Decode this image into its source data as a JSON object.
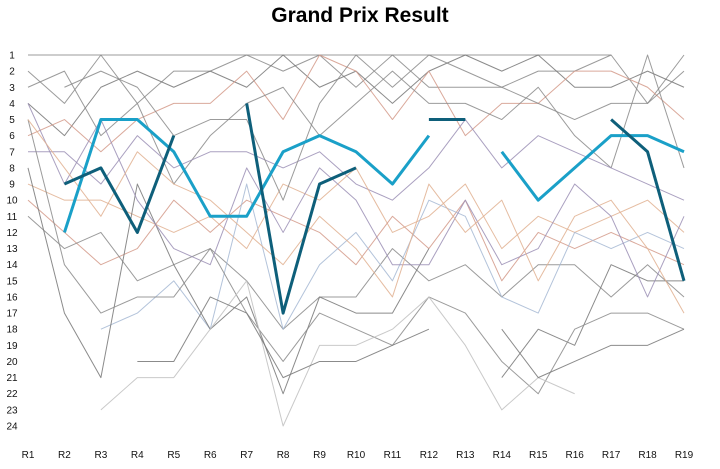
{
  "chart_data": {
    "type": "line",
    "title": "Grand Prix Result",
    "xlabel": "",
    "ylabel": "",
    "categories": [
      "R1",
      "R2",
      "R3",
      "R4",
      "R5",
      "R6",
      "R7",
      "R8",
      "R9",
      "R10",
      "R11",
      "R12",
      "R13",
      "R14",
      "R15",
      "R16",
      "R17",
      "R18",
      "R19"
    ],
    "y_ticks": [
      1,
      2,
      3,
      4,
      5,
      6,
      7,
      8,
      9,
      10,
      11,
      12,
      13,
      14,
      15,
      16,
      17,
      18,
      19,
      20,
      21,
      22,
      23,
      24
    ],
    "ylim": [
      1,
      24
    ],
    "y_inverted": true,
    "grid": false,
    "legend": "none",
    "highlight_series": [
      {
        "color": "#1aa0c8",
        "values": [
          null,
          12,
          5,
          5,
          7,
          11,
          11,
          7,
          6,
          7,
          9,
          6,
          null,
          7,
          10,
          8,
          6,
          6,
          7
        ]
      },
      {
        "color": "#0e5f7a",
        "values": [
          null,
          9,
          8,
          12,
          6,
          null,
          4,
          17,
          9,
          8,
          null,
          5,
          5,
          null,
          null,
          null,
          5,
          7,
          15
        ]
      }
    ],
    "background_series": [
      {
        "color": "#8a8a8a",
        "values": [
          1,
          1,
          1,
          1,
          1,
          1,
          1,
          1,
          1,
          1,
          1,
          1,
          1,
          1,
          1,
          1,
          1,
          null,
          null
        ]
      },
      {
        "color": "#8a8a8a",
        "values": [
          2,
          4,
          1,
          4,
          2,
          2,
          1,
          2,
          1,
          3,
          1,
          3,
          3,
          3,
          2,
          2,
          1,
          4,
          1
        ]
      },
      {
        "color": "#777777",
        "values": [
          4,
          6,
          3,
          2,
          3,
          2,
          3,
          1,
          3,
          2,
          4,
          2,
          1,
          2,
          1,
          3,
          3,
          2,
          3
        ]
      },
      {
        "color": "#d49a8a",
        "values": [
          6,
          5,
          7,
          5,
          4,
          4,
          2,
          5,
          1,
          2,
          5,
          2,
          6,
          4,
          4,
          2,
          2,
          3,
          5
        ]
      },
      {
        "color": "#8a8a8a",
        "values": [
          3,
          2,
          6,
          4,
          9,
          6,
          4,
          3,
          6,
          4,
          2,
          4,
          4,
          5,
          3,
          6,
          8,
          1,
          8
        ]
      },
      {
        "color": "#9b8fb5",
        "values": [
          7,
          7,
          9,
          6,
          8,
          7,
          7,
          8,
          7,
          9,
          10,
          8,
          5,
          8,
          6,
          7,
          8,
          9,
          10
        ]
      },
      {
        "color": "#e0b090",
        "values": [
          9,
          10,
          10,
          11,
          12,
          11,
          13,
          9,
          10,
          8,
          12,
          11,
          9,
          13,
          11,
          12,
          11,
          10,
          12
        ]
      },
      {
        "color": "#d49a8a",
        "values": [
          10,
          12,
          14,
          13,
          10,
          12,
          10,
          11,
          12,
          14,
          11,
          13,
          10,
          15,
          12,
          13,
          12,
          13,
          14
        ]
      },
      {
        "color": "#8a8a8a",
        "values": [
          11,
          13,
          12,
          15,
          14,
          13,
          15,
          18,
          16,
          16,
          13,
          15,
          14,
          16,
          14,
          14,
          16,
          14,
          16
        ]
      },
      {
        "color": "#a6b8d4",
        "values": [
          null,
          null,
          18,
          17,
          15,
          18,
          9,
          18,
          14,
          12,
          15,
          10,
          11,
          16,
          17,
          12,
          13,
          12,
          13
        ]
      },
      {
        "color": "#777777",
        "values": [
          8,
          17,
          21,
          9,
          14,
          18,
          16,
          22,
          16,
          17,
          17,
          13,
          null,
          21,
          18,
          19,
          14,
          15,
          15
        ]
      },
      {
        "color": "#8a8a8a",
        "values": [
          5,
          14,
          17,
          16,
          16,
          13,
          17,
          20,
          17,
          18,
          19,
          16,
          17,
          20,
          22,
          18,
          17,
          17,
          18
        ]
      },
      {
        "color": "#c0c0c0",
        "values": [
          null,
          null,
          23,
          21,
          21,
          18,
          15,
          24,
          19,
          19,
          18,
          16,
          19,
          23,
          21,
          22,
          null,
          null,
          null
        ]
      },
      {
        "color": "#777777",
        "values": [
          null,
          null,
          null,
          20,
          20,
          16,
          17,
          21,
          20,
          20,
          19,
          18,
          null,
          18,
          21,
          20,
          19,
          19,
          18
        ]
      },
      {
        "color": "#9b8fb5",
        "values": [
          4,
          9,
          5,
          10,
          13,
          14,
          8,
          12,
          8,
          10,
          14,
          14,
          10,
          14,
          13,
          9,
          11,
          16,
          11
        ]
      },
      {
        "color": "#e0b090",
        "values": [
          5,
          8,
          11,
          7,
          9,
          10,
          12,
          14,
          11,
          13,
          16,
          9,
          12,
          10,
          15,
          11,
          10,
          13,
          17
        ]
      },
      {
        "color": "#8a8a8a",
        "values": [
          null,
          3,
          2,
          3,
          6,
          5,
          5,
          10,
          4,
          1,
          3,
          1,
          2,
          3,
          4,
          5,
          4,
          4,
          2
        ]
      }
    ]
  }
}
